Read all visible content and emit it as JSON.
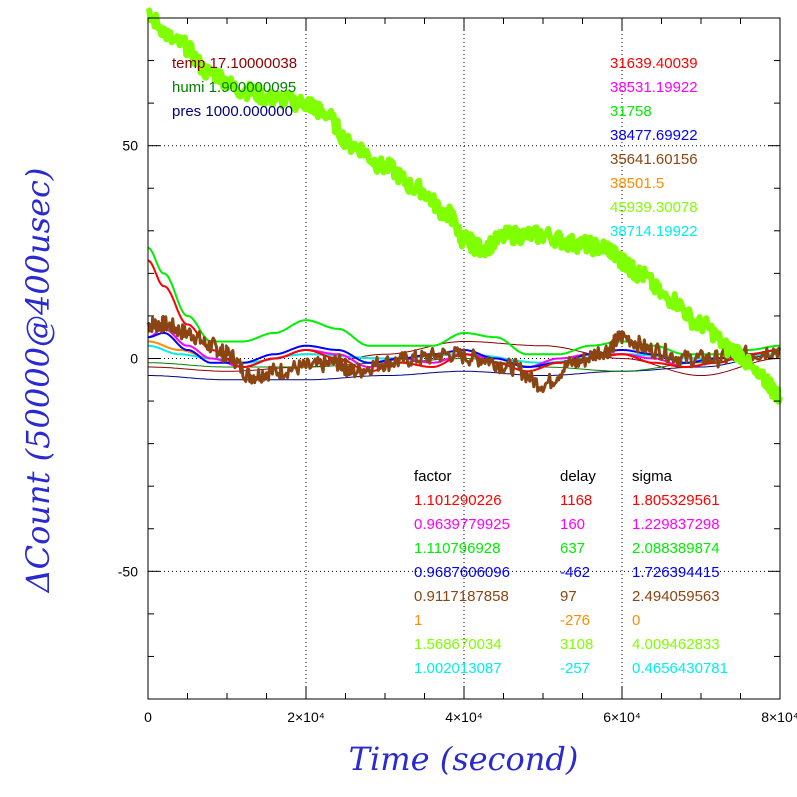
{
  "chart_data": {
    "type": "line",
    "xlabel": "Time (second)",
    "ylabel": "ΔCount (50000@400usec)",
    "xlim": [
      0,
      80000
    ],
    "ylim": [
      -80,
      80
    ],
    "x_ticks": [
      {
        "value": 0,
        "label": "0"
      },
      {
        "value": 20000,
        "label": "2×10⁴"
      },
      {
        "value": 40000,
        "label": "4×10⁴"
      },
      {
        "value": 60000,
        "label": "6×10⁴"
      },
      {
        "value": 80000,
        "label": "8×10⁴"
      }
    ],
    "y_ticks": [
      {
        "value": -50,
        "label": "-50"
      },
      {
        "value": 0,
        "label": "0"
      },
      {
        "value": 50,
        "label": "50"
      }
    ],
    "grid": true,
    "env": [
      {
        "text": "temp 17.10000038",
        "color": "#8b0000"
      },
      {
        "text": "humi 1.900000095",
        "color": "#008000"
      },
      {
        "text": "pres 1000.000000",
        "color": "#000080"
      }
    ],
    "stats_headers": [
      "factor",
      "delay",
      "sigma"
    ],
    "series": [
      {
        "color": "#ff0000",
        "base": "31639.40039",
        "factor": "1.101290226",
        "delay": "1168",
        "sigma": "1.805329561",
        "x": [
          0,
          2000,
          5000,
          8000,
          12000,
          16000,
          20000,
          24000,
          28000,
          32000,
          36000,
          40000,
          44000,
          48000,
          52000,
          56000,
          60000,
          64000,
          68000,
          72000,
          76000,
          80000
        ],
        "y": [
          23,
          17,
          8,
          2,
          -2,
          0,
          2,
          0,
          -3,
          -1,
          -2,
          1,
          -1,
          -3,
          -1,
          0,
          1,
          -1,
          -2,
          -1,
          1,
          2
        ]
      },
      {
        "color": "#ff00ff",
        "base": "38531.19922",
        "factor": "0.9639779925",
        "delay": "160",
        "sigma": "1.229837298",
        "x": [
          0,
          2000,
          5000,
          8000,
          12000,
          16000,
          20000,
          24000,
          28000,
          32000,
          36000,
          40000,
          44000,
          48000,
          52000,
          56000,
          60000,
          64000,
          68000,
          72000,
          76000,
          80000
        ],
        "y": [
          5,
          7,
          3,
          0,
          -2,
          0,
          2,
          1,
          -2,
          0,
          -1,
          1,
          0,
          -2,
          0,
          1,
          1,
          0,
          -2,
          -1,
          1,
          2
        ]
      },
      {
        "color": "#00ee00",
        "base": "31758",
        "factor": "1.110796928",
        "delay": "637",
        "sigma": "2.088389874",
        "x": [
          0,
          2000,
          5000,
          8000,
          12000,
          16000,
          20000,
          24000,
          28000,
          32000,
          36000,
          40000,
          44000,
          48000,
          52000,
          56000,
          60000,
          64000,
          68000,
          72000,
          76000,
          80000
        ],
        "y": [
          26,
          20,
          10,
          4,
          4,
          6,
          9,
          7,
          3,
          3,
          3,
          6,
          5,
          1,
          1,
          3,
          4,
          3,
          1,
          1,
          2,
          3
        ]
      },
      {
        "color": "#0000ff",
        "base": "38477.69922",
        "factor": "0.9687606096",
        "delay": "-462",
        "sigma": "1.726394415",
        "x": [
          0,
          2000,
          5000,
          8000,
          12000,
          16000,
          20000,
          24000,
          28000,
          32000,
          36000,
          40000,
          44000,
          48000,
          52000,
          56000,
          60000,
          64000,
          68000,
          72000,
          76000,
          80000
        ],
        "y": [
          5,
          6,
          2,
          -1,
          -1,
          1,
          3,
          2,
          -1,
          0,
          1,
          2,
          0,
          -2,
          -1,
          1,
          2,
          1,
          -1,
          0,
          1,
          2
        ]
      },
      {
        "color": "#8b4513",
        "base": "35641.60156",
        "factor": "0.9117187858",
        "delay": "97",
        "sigma": "2.494059563",
        "x": [
          0,
          2000,
          5000,
          8000,
          10000,
          13000,
          16000,
          20000,
          24000,
          26000,
          30000,
          34000,
          38000,
          42000,
          46000,
          50000,
          54000,
          58000,
          60000,
          64000,
          68000,
          72000,
          76000,
          80000
        ],
        "y": [
          8,
          8,
          6,
          3,
          1,
          -4,
          -3,
          -2,
          -1,
          -3,
          -1,
          0,
          1,
          0,
          -2,
          -6,
          -1,
          2,
          5,
          2,
          0,
          0,
          1,
          2
        ]
      },
      {
        "color": "#ff8c00",
        "base": "38501.5",
        "factor": "1",
        "delay": "-276",
        "sigma": "0",
        "x": [
          0,
          4000,
          8000,
          12000,
          20000,
          30000,
          40000,
          50000,
          60000,
          70000,
          80000
        ],
        "y": [
          4,
          2,
          0,
          -1,
          1,
          0,
          1,
          -1,
          1,
          0,
          1
        ]
      },
      {
        "color": "#7fff00",
        "base": "45939.30078",
        "factor": "1.568670034",
        "delay": "3108",
        "sigma": "4.009462833",
        "x": [
          0,
          4000,
          8000,
          12000,
          16000,
          20000,
          22000,
          26000,
          30000,
          34000,
          38000,
          40000,
          42000,
          46000,
          50000,
          54000,
          58000,
          60000,
          62000,
          66000,
          70000,
          74000,
          78000,
          80000
        ],
        "y": [
          80,
          74,
          67,
          63,
          61,
          60,
          58,
          50,
          45,
          40,
          34,
          28,
          26,
          29,
          29,
          27,
          26,
          23,
          20,
          14,
          8,
          2,
          -5,
          -9
        ]
      },
      {
        "color": "#00eeee",
        "base": "38714.19922",
        "factor": "1.002013087",
        "delay": "-257",
        "sigma": "0.4656430781",
        "x": [
          0,
          4000,
          8000,
          12000,
          20000,
          30000,
          40000,
          50000,
          60000,
          70000,
          80000
        ],
        "y": [
          3,
          1,
          0,
          -1,
          1,
          0,
          1,
          -1,
          1,
          0,
          1
        ]
      }
    ],
    "extra_lines": [
      {
        "color": "#000080",
        "x": [
          0,
          10000,
          20000,
          30000,
          40000,
          50000,
          60000,
          70000,
          80000
        ],
        "y": [
          -4,
          -5,
          -5,
          -4,
          -3,
          -4,
          -3,
          -2,
          1
        ]
      },
      {
        "color": "#8b0000",
        "x": [
          0,
          10000,
          20000,
          30000,
          40000,
          50000,
          60000,
          70000,
          80000
        ],
        "y": [
          -2,
          -3,
          -2,
          1,
          4,
          3,
          0,
          -4,
          0
        ]
      },
      {
        "color": "#008000",
        "x": [
          0,
          10000,
          20000,
          30000,
          40000,
          50000,
          60000,
          70000,
          80000
        ],
        "y": [
          -1,
          -2,
          -2,
          -1,
          0,
          -2,
          -3,
          -1,
          1
        ]
      }
    ]
  }
}
